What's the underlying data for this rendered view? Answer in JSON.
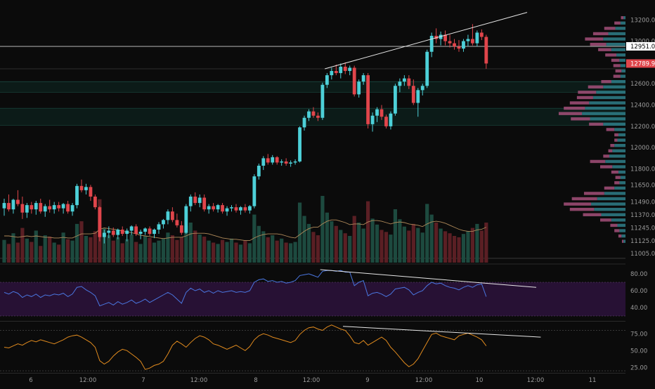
{
  "colors": {
    "background": "#0b0b0b",
    "up": "#4dd0d8",
    "down": "#e0454b",
    "volume_up": "#1d4a3f",
    "volume_down": "#5a1f24",
    "volume_ma": "#b08a5a",
    "profile_up": "#2f7f8a",
    "profile_down": "#a4507a",
    "rsi_line": "#4a76e0",
    "rsi_band": "#2a1238",
    "stoch_line": "#e08a1e",
    "trendline": "#e6e6e6",
    "axis_text": "#9a9a9a",
    "current_price_tag": "#e0454b",
    "level_tag": "#ffffff"
  },
  "chart_data": [
    {
      "type": "candlestick",
      "price_axis": {
        "ticks": [
          "13200.00",
          "13000.00",
          "12600.00",
          "12400.00",
          "12200.00",
          "12000.00",
          "11800.00",
          "11650.00",
          "11490.00",
          "11370.00",
          "11245.00",
          "11125.00",
          "11005.00"
        ],
        "range": [
          10920,
          13360
        ]
      },
      "price_labels": {
        "current": "12789.93",
        "marked_level": "12951.00"
      },
      "time_axis": {
        "ticks": [
          "6",
          "12:00",
          "7",
          "12:00",
          "8",
          "12:00",
          "9",
          "12:00",
          "10",
          "12:00",
          "11"
        ]
      },
      "candles": [
        [
          11430,
          11520,
          11360,
          11480
        ],
        [
          11480,
          11560,
          11400,
          11420
        ],
        [
          11420,
          11520,
          11380,
          11510
        ],
        [
          11510,
          11600,
          11450,
          11470
        ],
        [
          11470,
          11540,
          11330,
          11390
        ],
        [
          11390,
          11480,
          11340,
          11460
        ],
        [
          11460,
          11490,
          11380,
          11420
        ],
        [
          11420,
          11500,
          11370,
          11480
        ],
        [
          11480,
          11520,
          11380,
          11400
        ],
        [
          11400,
          11470,
          11350,
          11450
        ],
        [
          11450,
          11510,
          11390,
          11420
        ],
        [
          11420,
          11490,
          11380,
          11460
        ],
        [
          11460,
          11490,
          11400,
          11430
        ],
        [
          11430,
          11480,
          11380,
          11470
        ],
        [
          11470,
          11500,
          11380,
          11400
        ],
        [
          11400,
          11480,
          11360,
          11460
        ],
        [
          11460,
          11660,
          11430,
          11640
        ],
        [
          11640,
          11700,
          11580,
          11600
        ],
        [
          11600,
          11660,
          11560,
          11630
        ],
        [
          11630,
          11650,
          11500,
          11540
        ],
        [
          11540,
          11560,
          11420,
          11440
        ],
        [
          11440,
          11450,
          11120,
          11160
        ],
        [
          11160,
          11230,
          11100,
          11200
        ],
        [
          11200,
          11260,
          11150,
          11220
        ],
        [
          11220,
          11250,
          11160,
          11180
        ],
        [
          11180,
          11240,
          11140,
          11230
        ],
        [
          11230,
          11260,
          11170,
          11190
        ],
        [
          11190,
          11240,
          11120,
          11220
        ],
        [
          11220,
          11270,
          11180,
          11260
        ],
        [
          11260,
          11280,
          11170,
          11190
        ],
        [
          11190,
          11230,
          11140,
          11210
        ],
        [
          11210,
          11250,
          11180,
          11240
        ],
        [
          11240,
          11260,
          11170,
          11190
        ],
        [
          11190,
          11240,
          11150,
          11230
        ],
        [
          11230,
          11300,
          11190,
          11280
        ],
        [
          11280,
          11330,
          11240,
          11320
        ],
        [
          11320,
          11420,
          11280,
          11400
        ],
        [
          11400,
          11440,
          11300,
          11320
        ],
        [
          11320,
          11380,
          11250,
          11270
        ],
        [
          11270,
          11310,
          11180,
          11200
        ],
        [
          11200,
          11470,
          11190,
          11450
        ],
        [
          11450,
          11560,
          11400,
          11540
        ],
        [
          11540,
          11580,
          11460,
          11480
        ],
        [
          11480,
          11560,
          11440,
          11530
        ],
        [
          11530,
          11560,
          11400,
          11420
        ],
        [
          11420,
          11470,
          11380,
          11450
        ],
        [
          11450,
          11480,
          11400,
          11420
        ],
        [
          11420,
          11470,
          11390,
          11460
        ],
        [
          11460,
          11480,
          11380,
          11400
        ],
        [
          11400,
          11450,
          11360,
          11430
        ],
        [
          11430,
          11460,
          11400,
          11440
        ],
        [
          11440,
          11470,
          11390,
          11410
        ],
        [
          11410,
          11450,
          11370,
          11440
        ],
        [
          11440,
          11470,
          11390,
          11410
        ],
        [
          11410,
          11460,
          11380,
          11450
        ],
        [
          11450,
          11750,
          11430,
          11730
        ],
        [
          11730,
          11850,
          11700,
          11830
        ],
        [
          11830,
          11920,
          11790,
          11900
        ],
        [
          11900,
          11940,
          11840,
          11860
        ],
        [
          11860,
          11930,
          11840,
          11910
        ],
        [
          11910,
          11920,
          11840,
          11860
        ],
        [
          11860,
          11890,
          11830,
          11870
        ],
        [
          11870,
          11900,
          11830,
          11850
        ],
        [
          11850,
          11880,
          11820,
          11860
        ],
        [
          11860,
          11890,
          11840,
          11870
        ],
        [
          11870,
          12200,
          11860,
          12190
        ],
        [
          12190,
          12300,
          12160,
          12280
        ],
        [
          12280,
          12360,
          12250,
          12340
        ],
        [
          12340,
          12380,
          12280,
          12300
        ],
        [
          12300,
          12330,
          12250,
          12280
        ],
        [
          12280,
          12610,
          12260,
          12590
        ],
        [
          12590,
          12700,
          12560,
          12680
        ],
        [
          12680,
          12750,
          12640,
          12720
        ],
        [
          12720,
          12780,
          12680,
          12700
        ],
        [
          12700,
          12790,
          12650,
          12760
        ],
        [
          12760,
          12800,
          12690,
          12720
        ],
        [
          12720,
          12770,
          12680,
          12750
        ],
        [
          12750,
          12770,
          12480,
          12500
        ],
        [
          12500,
          12640,
          12470,
          12620
        ],
        [
          12620,
          12700,
          12590,
          12680
        ],
        [
          12680,
          12700,
          12180,
          12220
        ],
        [
          12220,
          12330,
          12150,
          12300
        ],
        [
          12300,
          12380,
          12240,
          12360
        ],
        [
          12360,
          12400,
          12260,
          12290
        ],
        [
          12290,
          12310,
          12180,
          12200
        ],
        [
          12200,
          12340,
          12170,
          12320
        ],
        [
          12320,
          12600,
          12300,
          12580
        ],
        [
          12580,
          12650,
          12520,
          12620
        ],
        [
          12620,
          12680,
          12580,
          12650
        ],
        [
          12650,
          12680,
          12550,
          12580
        ],
        [
          12580,
          12640,
          12400,
          12420
        ],
        [
          12420,
          12560,
          12290,
          12540
        ],
        [
          12540,
          12600,
          12490,
          12580
        ],
        [
          12580,
          12920,
          12560,
          12900
        ],
        [
          12900,
          13080,
          12850,
          13050
        ],
        [
          13050,
          13120,
          12980,
          13020
        ],
        [
          13020,
          13090,
          12960,
          13060
        ],
        [
          13060,
          13100,
          12960,
          13000
        ],
        [
          13000,
          13060,
          12940,
          12980
        ],
        [
          12980,
          13020,
          12920,
          12950
        ],
        [
          12950,
          13010,
          12900,
          12930
        ],
        [
          12930,
          13020,
          12900,
          13000
        ],
        [
          13000,
          13060,
          12950,
          13020
        ],
        [
          13020,
          13160,
          12960,
          12980
        ],
        [
          12980,
          13100,
          12950,
          13080
        ],
        [
          13080,
          13110,
          13010,
          13040
        ],
        [
          13040,
          13060,
          12740,
          12790
        ]
      ],
      "volume": [
        34,
        28,
        44,
        30,
        52,
        36,
        31,
        48,
        25,
        41,
        39,
        30,
        27,
        45,
        35,
        33,
        58,
        62,
        40,
        38,
        47,
        95,
        52,
        41,
        33,
        38,
        29,
        35,
        42,
        31,
        28,
        40,
        37,
        30,
        33,
        36,
        45,
        41,
        34,
        38,
        55,
        60,
        48,
        42,
        39,
        33,
        30,
        28,
        34,
        31,
        36,
        30,
        27,
        33,
        29,
        72,
        55,
        47,
        38,
        41,
        33,
        36,
        30,
        29,
        31,
        90,
        70,
        58,
        46,
        41,
        100,
        75,
        62,
        55,
        49,
        44,
        40,
        70,
        60,
        51,
        92,
        66,
        57,
        49,
        46,
        42,
        80,
        65,
        54,
        48,
        58,
        52,
        45,
        88,
        72,
        60,
        51,
        47,
        44,
        40,
        38,
        43,
        47,
        52,
        58,
        48,
        60
      ],
      "volume_ma": [
        40,
        40,
        39,
        38,
        39,
        40,
        39,
        40,
        39,
        38,
        38,
        37,
        37,
        38,
        37,
        37,
        40,
        43,
        43,
        43,
        44,
        50,
        52,
        51,
        50,
        49,
        47,
        46,
        45,
        43,
        41,
        40,
        39,
        38,
        37,
        36,
        37,
        38,
        38,
        38,
        40,
        43,
        44,
        44,
        44,
        43,
        41,
        39,
        37,
        36,
        35,
        35,
        34,
        33,
        33,
        37,
        40,
        42,
        43,
        43,
        43,
        42,
        40,
        38,
        37,
        42,
        47,
        51,
        53,
        53,
        58,
        62,
        64,
        64,
        62,
        60,
        57,
        58,
        58,
        57,
        61,
        63,
        63,
        62,
        60,
        58,
        60,
        61,
        60,
        58,
        57,
        56,
        54,
        58,
        61,
        62,
        61,
        59,
        56,
        53,
        50,
        48,
        47,
        47,
        49,
        50,
        53
      ],
      "volume_profile": [
        [
          13220,
          4,
          5
        ],
        [
          13170,
          10,
          12
        ],
        [
          13120,
          20,
          22
        ],
        [
          13070,
          34,
          30
        ],
        [
          13020,
          44,
          36
        ],
        [
          12970,
          38,
          32
        ],
        [
          12920,
          28,
          26
        ],
        [
          12870,
          18,
          22
        ],
        [
          12820,
          12,
          16
        ],
        [
          12770,
          10,
          14
        ],
        [
          12720,
          8,
          12
        ],
        [
          12670,
          10,
          14
        ],
        [
          12620,
          28,
          20
        ],
        [
          12570,
          44,
          30
        ],
        [
          12520,
          58,
          36
        ],
        [
          12470,
          64,
          32
        ],
        [
          12420,
          72,
          38
        ],
        [
          12370,
          80,
          42
        ],
        [
          12320,
          86,
          46
        ],
        [
          12270,
          70,
          38
        ],
        [
          12220,
          44,
          28
        ],
        [
          12170,
          22,
          16
        ],
        [
          12120,
          14,
          8
        ],
        [
          12070,
          16,
          6
        ],
        [
          12020,
          22,
          8
        ],
        [
          11970,
          26,
          8
        ],
        [
          11920,
          32,
          12
        ],
        [
          11870,
          40,
          30
        ],
        [
          11820,
          26,
          24
        ],
        [
          11770,
          14,
          14
        ],
        [
          11720,
          10,
          10
        ],
        [
          11670,
          12,
          10
        ],
        [
          11620,
          22,
          20
        ],
        [
          11570,
          42,
          40
        ],
        [
          11520,
          56,
          50
        ],
        [
          11470,
          68,
          54
        ],
        [
          11420,
          62,
          48
        ],
        [
          11370,
          48,
          36
        ],
        [
          11320,
          28,
          22
        ],
        [
          11270,
          16,
          14
        ],
        [
          11220,
          12,
          10
        ],
        [
          11170,
          8,
          6
        ],
        [
          11120,
          4,
          3
        ]
      ],
      "trendlines": [
        {
          "from": [
            70.5,
            12740
          ],
          "to": [
            115,
            13270
          ]
        }
      ]
    },
    {
      "type": "line",
      "ticks": [
        "80.00",
        "60.00",
        "40.00"
      ],
      "ylim": [
        25,
        90
      ],
      "band": [
        30,
        70
      ],
      "values": [
        58,
        56,
        59,
        57,
        52,
        55,
        53,
        56,
        52,
        55,
        54,
        56,
        55,
        57,
        53,
        56,
        64,
        65,
        61,
        58,
        54,
        42,
        44,
        46,
        43,
        47,
        44,
        46,
        49,
        45,
        47,
        50,
        46,
        49,
        52,
        55,
        58,
        55,
        50,
        45,
        58,
        63,
        60,
        62,
        58,
        60,
        57,
        60,
        58,
        59,
        60,
        58,
        59,
        58,
        60,
        70,
        73,
        74,
        71,
        72,
        70,
        71,
        69,
        70,
        72,
        78,
        79,
        80,
        78,
        76,
        83,
        84,
        84,
        83,
        84,
        82,
        82,
        66,
        70,
        72,
        54,
        57,
        58,
        56,
        53,
        56,
        62,
        63,
        64,
        61,
        55,
        58,
        60,
        66,
        70,
        68,
        69,
        66,
        64,
        63,
        61,
        64,
        66,
        64,
        67,
        68,
        53
      ],
      "trendlines": [
        {
          "from": [
            69.5,
            85
          ],
          "to": [
            117,
            64
          ]
        }
      ]
    },
    {
      "type": "line",
      "ticks": [
        "75.00",
        "50.00",
        "25.00"
      ],
      "ylim": [
        18,
        92
      ],
      "bands": [
        20,
        80
      ],
      "values": [
        55,
        54,
        57,
        60,
        58,
        62,
        65,
        63,
        66,
        64,
        62,
        60,
        63,
        66,
        70,
        72,
        73,
        70,
        66,
        62,
        55,
        35,
        30,
        34,
        42,
        48,
        52,
        50,
        45,
        40,
        34,
        22,
        24,
        28,
        30,
        34,
        45,
        58,
        64,
        60,
        55,
        62,
        68,
        72,
        70,
        66,
        60,
        58,
        55,
        52,
        55,
        58,
        54,
        50,
        56,
        66,
        72,
        75,
        73,
        70,
        68,
        66,
        64,
        62,
        65,
        74,
        80,
        84,
        85,
        82,
        80,
        85,
        88,
        85,
        82,
        80,
        72,
        62,
        60,
        65,
        58,
        62,
        66,
        70,
        65,
        55,
        48,
        40,
        32,
        26,
        30,
        38,
        50,
        62,
        74,
        76,
        72,
        70,
        68,
        66,
        72,
        74,
        76,
        73,
        70,
        66,
        57
      ],
      "trendlines": [
        {
          "from": [
            74.5,
            86
          ],
          "to": [
            118,
            70
          ]
        }
      ]
    }
  ]
}
